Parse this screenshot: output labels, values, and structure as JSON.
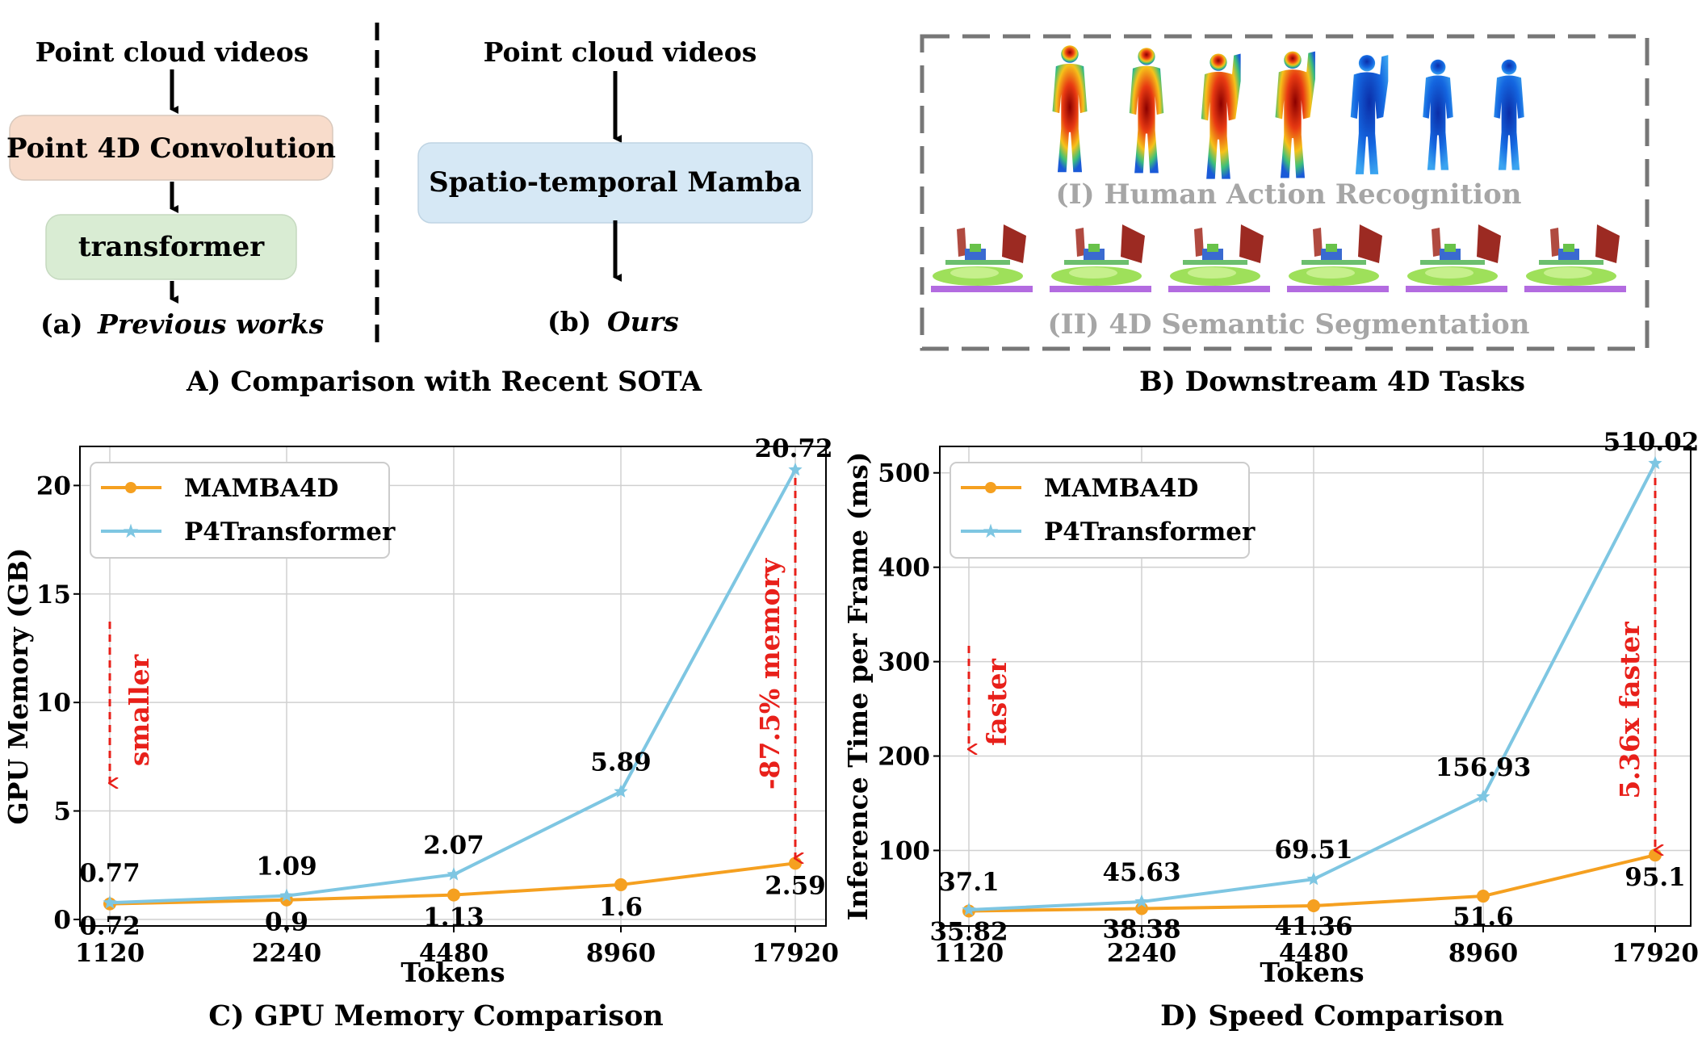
{
  "panelA": {
    "caption": "A) Comparison with Recent SOTA",
    "left_input": "Point cloud videos",
    "conv_label": "Point 4D Convolution",
    "transformer_label": "transformer",
    "left_tag": "(a)",
    "left_caption": "Previous works",
    "right_input": "Point cloud videos",
    "mamba_label": "Spatio-temporal Mamba",
    "right_tag": "(b)",
    "right_caption": "Ours",
    "colors": {
      "conv_box": "#f8dccb",
      "transformer_box": "#d9ecd3",
      "mamba_box": "#d6e8f5"
    }
  },
  "panelB": {
    "caption": "B) Downstream 4D Tasks",
    "task1": "(I) Human Action Recognition",
    "task2": "(II) 4D Semantic Segmentation"
  },
  "chart_data": [
    {
      "type": "line",
      "title": "C) GPU Memory Comparison",
      "xlabel": "Tokens",
      "ylabel": "GPU Memory (GB)",
      "categories": [
        "1120",
        "2240",
        "4480",
        "8960",
        "17920"
      ],
      "ylim": [
        -0.3,
        21.8
      ],
      "yticks": [
        0,
        5,
        10,
        15,
        20
      ],
      "grid": true,
      "legend_position": "top-left",
      "series": [
        {
          "name": "MAMBA4D",
          "values": [
            0.72,
            0.9,
            1.13,
            1.6,
            2.59
          ],
          "labels": [
            "0.72",
            "0.9",
            "1.13",
            "1.6",
            "2.59"
          ],
          "color": "#f5a020",
          "marker": "circle"
        },
        {
          "name": "P4Transformer",
          "values": [
            0.77,
            1.09,
            2.07,
            5.89,
            20.72
          ],
          "labels": [
            "0.77",
            "1.09",
            "2.07",
            "5.89",
            "20.72"
          ],
          "color": "#7ec6e2",
          "marker": "star"
        }
      ],
      "annotations": [
        {
          "text": "smaller",
          "color": "#e8201a",
          "arrow": "down"
        },
        {
          "text": "-87.5% memory",
          "color": "#e8201a",
          "arrow": "down"
        }
      ]
    },
    {
      "type": "line",
      "title": "D) Speed Comparison",
      "xlabel": "Tokens",
      "ylabel": "Inference Time per Frame (ms)",
      "categories": [
        "1120",
        "2240",
        "4480",
        "8960",
        "17920"
      ],
      "ylim": [
        20,
        528
      ],
      "yticks": [
        100,
        200,
        300,
        400,
        500
      ],
      "grid": true,
      "legend_position": "top-left",
      "series": [
        {
          "name": "MAMBA4D",
          "values": [
            35.82,
            38.38,
            41.36,
            51.6,
            95.1
          ],
          "labels": [
            "35.82",
            "38.38",
            "41.36",
            "51.6",
            "95.1"
          ],
          "color": "#f5a020",
          "marker": "circle"
        },
        {
          "name": "P4Transformer",
          "values": [
            37.1,
            45.63,
            69.51,
            156.93,
            510.02
          ],
          "labels": [
            "37.1",
            "45.63",
            "69.51",
            "156.93",
            "510.02"
          ],
          "color": "#7ec6e2",
          "marker": "star"
        }
      ],
      "annotations": [
        {
          "text": "faster",
          "color": "#e8201a",
          "arrow": "down"
        },
        {
          "text": "5.36x faster",
          "color": "#e8201a",
          "arrow": "down"
        }
      ]
    }
  ]
}
